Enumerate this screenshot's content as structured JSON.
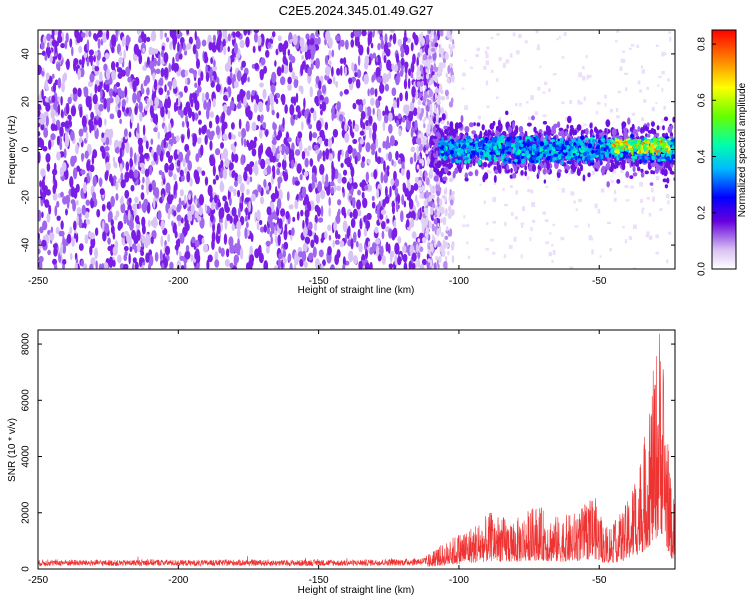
{
  "title": "C2E5.2024.345.01.49.G27",
  "chart_data": [
    {
      "type": "heatmap",
      "xlabel": "Height of straight line (km)",
      "ylabel": "Frequency (Hz)",
      "xlim": [
        -250,
        -23
      ],
      "ylim": [
        -50,
        50
      ],
      "xticks": [
        -250,
        -200,
        -150,
        -100,
        -50
      ],
      "yticks": [
        -40,
        -20,
        0,
        20,
        40
      ],
      "colorbar": {
        "label": "Normalized spectral amplitude",
        "range": [
          0,
          0.85
        ],
        "ticks": [
          0.0,
          0.2,
          0.4,
          0.6,
          0.8
        ]
      },
      "features": [
        {
          "x_range": [
            -250,
            -115
          ],
          "freq_range": [
            -50,
            50
          ],
          "amplitude": 0.02
        },
        {
          "x_range": [
            -115,
            -102
          ],
          "freq_range": [
            -50,
            50
          ],
          "amplitude": 0.01
        },
        {
          "x_range": [
            -110,
            -25
          ],
          "freq_range": [
            -8,
            8
          ],
          "amplitude": 0.35
        },
        {
          "x_range": [
            -45,
            -25
          ],
          "freq_range": [
            -3,
            5
          ],
          "amplitude": 0.8
        }
      ]
    },
    {
      "type": "line",
      "xlabel": "Height of straight line (km)",
      "ylabel": "SNR (10 * v/v)",
      "xlim": [
        -250,
        -23
      ],
      "ylim": [
        0,
        8500
      ],
      "xticks": [
        -250,
        -200,
        -150,
        -100,
        -50
      ],
      "yticks": [
        0,
        2000,
        4000,
        6000,
        8000
      ],
      "series": [
        {
          "color": "#ee3333",
          "x": [
            -250,
            -240,
            -230,
            -220,
            -210,
            -200,
            -190,
            -180,
            -170,
            -160,
            -150,
            -140,
            -130,
            -120,
            -112,
            -108,
            -104,
            -100,
            -96,
            -92,
            -88,
            -84,
            -80,
            -76,
            -72,
            -68,
            -64,
            -60,
            -56,
            -52,
            -48,
            -44,
            -40,
            -36,
            -34,
            -32,
            -30,
            -28,
            -26,
            -24,
            -23
          ],
          "y": [
            300,
            320,
            310,
            300,
            330,
            310,
            300,
            320,
            310,
            300,
            320,
            300,
            330,
            340,
            400,
            700,
            900,
            1200,
            1400,
            1600,
            1900,
            1700,
            1600,
            1900,
            2100,
            1800,
            1700,
            1800,
            2000,
            2500,
            1400,
            1600,
            2200,
            3500,
            4200,
            5500,
            7000,
            8500,
            5000,
            2200,
            2500
          ]
        }
      ]
    }
  ]
}
